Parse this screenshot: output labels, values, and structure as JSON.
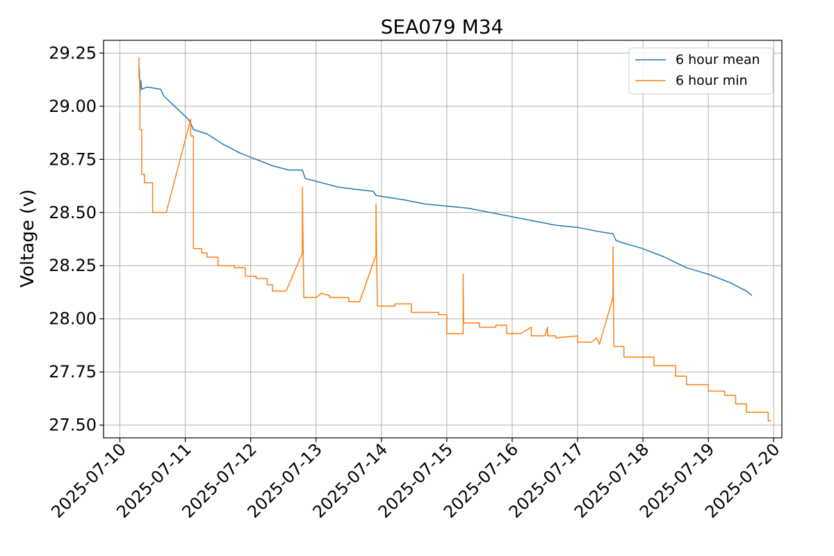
{
  "chart_data": {
    "type": "line",
    "title": "SEA079 M34",
    "xlabel": "",
    "ylabel": "Voltage (v)",
    "x_axis_type": "date",
    "xlim": [
      "2025-07-09 18:00",
      "2025-07-20 03:00"
    ],
    "ylim": [
      27.44,
      29.31
    ],
    "x_ticks": [
      "2025-07-10",
      "2025-07-11",
      "2025-07-12",
      "2025-07-13",
      "2025-07-14",
      "2025-07-15",
      "2025-07-16",
      "2025-07-17",
      "2025-07-18",
      "2025-07-19",
      "2025-07-20"
    ],
    "y_ticks": [
      "27.50",
      "27.75",
      "28.00",
      "28.25",
      "28.50",
      "28.75",
      "29.00",
      "29.25"
    ],
    "grid": true,
    "legend": "top-right",
    "series": [
      {
        "name": "6 hour mean",
        "color": "#1f77b4",
        "points": [
          [
            "2025-07-10 07:00",
            29.19
          ],
          [
            "2025-07-10 07:10",
            29.17
          ],
          [
            "2025-07-10 07:20",
            29.05
          ],
          [
            "2025-07-10 07:40",
            29.12
          ],
          [
            "2025-07-10 08:00",
            29.08
          ],
          [
            "2025-07-10 10:00",
            29.09
          ],
          [
            "2025-07-10 15:00",
            29.08
          ],
          [
            "2025-07-10 16:00",
            29.05
          ],
          [
            "2025-07-11 01:00",
            28.94
          ],
          [
            "2025-07-11 02:00",
            28.92
          ],
          [
            "2025-07-11 03:00",
            28.89
          ],
          [
            "2025-07-11 08:00",
            28.87
          ],
          [
            "2025-07-11 14:00",
            28.82
          ],
          [
            "2025-07-11 20:00",
            28.78
          ],
          [
            "2025-07-12 02:00",
            28.75
          ],
          [
            "2025-07-12 08:00",
            28.72
          ],
          [
            "2025-07-12 14:00",
            28.7
          ],
          [
            "2025-07-12 19:00",
            28.7
          ],
          [
            "2025-07-12 20:00",
            28.66
          ],
          [
            "2025-07-13 02:00",
            28.64
          ],
          [
            "2025-07-13 08:00",
            28.62
          ],
          [
            "2025-07-13 14:00",
            28.61
          ],
          [
            "2025-07-13 21:00",
            28.6
          ],
          [
            "2025-07-13 22:00",
            28.58
          ],
          [
            "2025-07-14 08:00",
            28.56
          ],
          [
            "2025-07-14 16:00",
            28.54
          ],
          [
            "2025-07-15 00:00",
            28.53
          ],
          [
            "2025-07-15 08:00",
            28.52
          ],
          [
            "2025-07-15 16:00",
            28.5
          ],
          [
            "2025-07-16 00:00",
            28.48
          ],
          [
            "2025-07-16 08:00",
            28.46
          ],
          [
            "2025-07-16 16:00",
            28.44
          ],
          [
            "2025-07-17 00:00",
            28.43
          ],
          [
            "2025-07-17 08:00",
            28.41
          ],
          [
            "2025-07-17 13:00",
            28.4
          ],
          [
            "2025-07-17 14:00",
            28.37
          ],
          [
            "2025-07-17 16:00",
            28.36
          ],
          [
            "2025-07-18 00:00",
            28.33
          ],
          [
            "2025-07-18 08:00",
            28.29
          ],
          [
            "2025-07-18 16:00",
            28.24
          ],
          [
            "2025-07-19 00:00",
            28.21
          ],
          [
            "2025-07-19 08:00",
            28.17
          ],
          [
            "2025-07-19 14:00",
            28.13
          ],
          [
            "2025-07-19 16:00",
            28.11
          ]
        ]
      },
      {
        "name": "6 hour min",
        "color": "#ff7f0e",
        "points": [
          [
            "2025-07-10 07:00",
            29.23
          ],
          [
            "2025-07-10 07:00",
            29.13
          ],
          [
            "2025-07-10 07:20",
            29.13
          ],
          [
            "2025-07-10 07:20",
            28.89
          ],
          [
            "2025-07-10 08:00",
            28.89
          ],
          [
            "2025-07-10 08:00",
            28.68
          ],
          [
            "2025-07-10 09:00",
            28.68
          ],
          [
            "2025-07-10 09:00",
            28.64
          ],
          [
            "2025-07-10 12:00",
            28.64
          ],
          [
            "2025-07-10 12:00",
            28.5
          ],
          [
            "2025-07-10 17:00",
            28.5
          ],
          [
            "2025-07-11 02:00",
            28.94
          ],
          [
            "2025-07-11 02:00",
            28.86
          ],
          [
            "2025-07-11 03:00",
            28.86
          ],
          [
            "2025-07-11 03:00",
            28.33
          ],
          [
            "2025-07-11 06:00",
            28.33
          ],
          [
            "2025-07-11 06:00",
            28.31
          ],
          [
            "2025-07-11 08:00",
            28.31
          ],
          [
            "2025-07-11 08:00",
            28.29
          ],
          [
            "2025-07-11 12:00",
            28.29
          ],
          [
            "2025-07-11 12:00",
            28.25
          ],
          [
            "2025-07-11 18:00",
            28.25
          ],
          [
            "2025-07-11 18:00",
            28.24
          ],
          [
            "2025-07-11 22:00",
            28.24
          ],
          [
            "2025-07-11 22:00",
            28.2
          ],
          [
            "2025-07-12 02:00",
            28.2
          ],
          [
            "2025-07-12 02:00",
            28.19
          ],
          [
            "2025-07-12 06:00",
            28.19
          ],
          [
            "2025-07-12 06:00",
            28.16
          ],
          [
            "2025-07-12 08:00",
            28.16
          ],
          [
            "2025-07-12 08:00",
            28.13
          ],
          [
            "2025-07-12 13:00",
            28.13
          ],
          [
            "2025-07-12 19:00",
            28.31
          ],
          [
            "2025-07-12 19:00",
            28.62
          ],
          [
            "2025-07-12 19:30",
            28.1
          ],
          [
            "2025-07-13 00:00",
            28.1
          ],
          [
            "2025-07-13 02:00",
            28.12
          ],
          [
            "2025-07-13 05:00",
            28.11
          ],
          [
            "2025-07-13 05:00",
            28.1
          ],
          [
            "2025-07-13 12:00",
            28.1
          ],
          [
            "2025-07-13 12:00",
            28.08
          ],
          [
            "2025-07-13 16:00",
            28.08
          ],
          [
            "2025-07-13 22:00",
            28.3
          ],
          [
            "2025-07-13 22:00",
            28.54
          ],
          [
            "2025-07-13 22:30",
            28.06
          ],
          [
            "2025-07-14 05:00",
            28.06
          ],
          [
            "2025-07-14 05:00",
            28.07
          ],
          [
            "2025-07-14 11:00",
            28.07
          ],
          [
            "2025-07-14 11:00",
            28.03
          ],
          [
            "2025-07-14 21:00",
            28.03
          ],
          [
            "2025-07-14 21:00",
            28.02
          ],
          [
            "2025-07-15 00:00",
            28.02
          ],
          [
            "2025-07-15 00:00",
            27.93
          ],
          [
            "2025-07-15 06:00",
            27.93
          ],
          [
            "2025-07-15 06:00",
            28.21
          ],
          [
            "2025-07-15 06:10",
            27.98
          ],
          [
            "2025-07-15 12:00",
            27.98
          ],
          [
            "2025-07-15 12:00",
            27.96
          ],
          [
            "2025-07-15 18:00",
            27.96
          ],
          [
            "2025-07-15 18:00",
            27.97
          ],
          [
            "2025-07-15 22:00",
            27.97
          ],
          [
            "2025-07-15 22:00",
            27.93
          ],
          [
            "2025-07-16 03:00",
            27.93
          ],
          [
            "2025-07-16 07:00",
            27.96
          ],
          [
            "2025-07-16 07:00",
            27.92
          ],
          [
            "2025-07-16 12:00",
            27.92
          ],
          [
            "2025-07-16 13:00",
            27.96
          ],
          [
            "2025-07-16 13:00",
            27.92
          ],
          [
            "2025-07-16 16:00",
            27.92
          ],
          [
            "2025-07-16 16:00",
            27.91
          ],
          [
            "2025-07-17 00:00",
            27.92
          ],
          [
            "2025-07-17 00:00",
            27.89
          ],
          [
            "2025-07-17 05:00",
            27.89
          ],
          [
            "2025-07-17 07:00",
            27.91
          ],
          [
            "2025-07-17 08:00",
            27.88
          ],
          [
            "2025-07-17 13:00",
            28.1
          ],
          [
            "2025-07-17 13:00",
            28.34
          ],
          [
            "2025-07-17 13:20",
            27.87
          ],
          [
            "2025-07-17 17:00",
            27.87
          ],
          [
            "2025-07-17 17:00",
            27.82
          ],
          [
            "2025-07-18 04:00",
            27.82
          ],
          [
            "2025-07-18 04:00",
            27.78
          ],
          [
            "2025-07-18 12:00",
            27.78
          ],
          [
            "2025-07-18 12:00",
            27.73
          ],
          [
            "2025-07-18 16:00",
            27.73
          ],
          [
            "2025-07-18 16:00",
            27.69
          ],
          [
            "2025-07-19 00:00",
            27.69
          ],
          [
            "2025-07-19 00:00",
            27.66
          ],
          [
            "2025-07-19 06:00",
            27.66
          ],
          [
            "2025-07-19 06:00",
            27.64
          ],
          [
            "2025-07-19 10:00",
            27.64
          ],
          [
            "2025-07-19 10:00",
            27.6
          ],
          [
            "2025-07-19 14:00",
            27.6
          ],
          [
            "2025-07-19 14:00",
            27.56
          ],
          [
            "2025-07-19 22:00",
            27.56
          ],
          [
            "2025-07-19 22:00",
            27.52
          ],
          [
            "2025-07-19 23:00",
            27.52
          ]
        ]
      }
    ]
  }
}
